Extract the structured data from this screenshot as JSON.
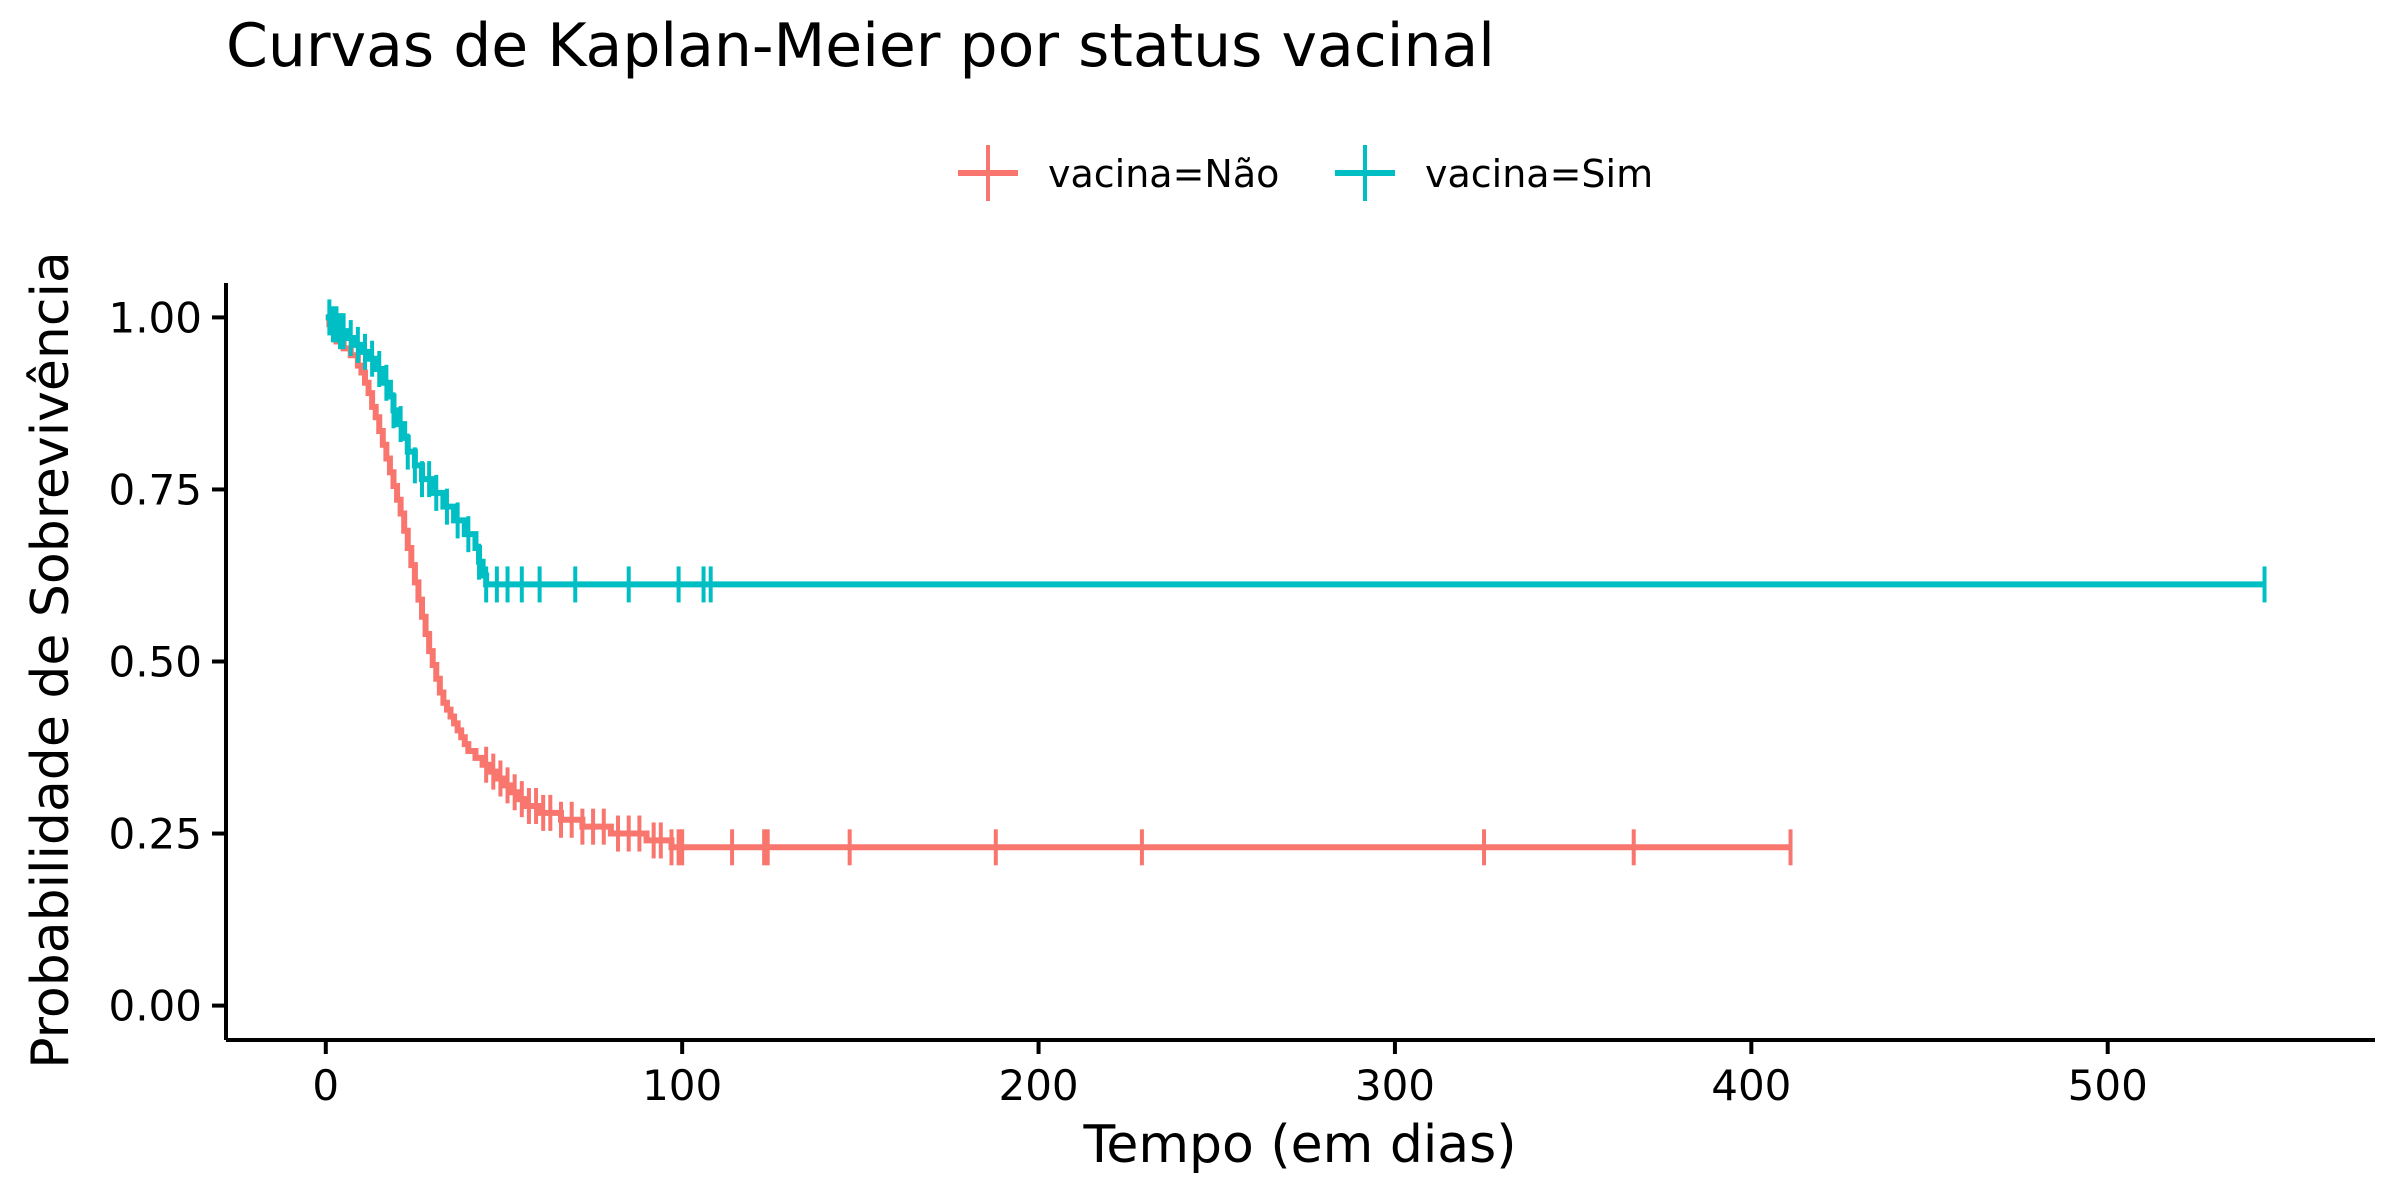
{
  "chart_data": {
    "type": "line",
    "title": "Curvas de Kaplan-Meier por status vacinal",
    "xlabel": "Tempo (em dias)",
    "ylabel": "Probabilidade de Sobrevivência",
    "xlim": [
      -28,
      575
    ],
    "ylim": [
      -0.05,
      1.05
    ],
    "x_ticks": [
      0,
      100,
      200,
      300,
      400,
      500
    ],
    "x_tick_labels": [
      "0",
      "100",
      "200",
      "300",
      "400",
      "500"
    ],
    "y_ticks": [
      0,
      0.25,
      0.5,
      0.75,
      1.0
    ],
    "y_tick_labels": [
      "0.00",
      "0.25",
      "0.50",
      "0.75",
      "1.00"
    ],
    "grid": false,
    "legend_position": "top",
    "series": [
      {
        "name": "vacina=Não",
        "color": "#F8766D",
        "steps": [
          [
            0,
            1.0
          ],
          [
            1,
            0.99
          ],
          [
            2,
            0.98
          ],
          [
            3,
            0.965
          ],
          [
            5,
            0.955
          ],
          [
            7,
            0.945
          ],
          [
            9,
            0.93
          ],
          [
            10,
            0.92
          ],
          [
            11,
            0.905
          ],
          [
            12,
            0.89
          ],
          [
            13,
            0.87
          ],
          [
            14,
            0.855
          ],
          [
            15,
            0.835
          ],
          [
            16,
            0.815
          ],
          [
            17,
            0.795
          ],
          [
            18,
            0.775
          ],
          [
            19,
            0.755
          ],
          [
            20,
            0.735
          ],
          [
            21,
            0.715
          ],
          [
            22,
            0.69
          ],
          [
            23,
            0.665
          ],
          [
            24,
            0.64
          ],
          [
            25,
            0.615
          ],
          [
            26,
            0.59
          ],
          [
            27,
            0.565
          ],
          [
            28,
            0.54
          ],
          [
            29,
            0.515
          ],
          [
            30,
            0.495
          ],
          [
            31,
            0.475
          ],
          [
            32,
            0.455
          ],
          [
            33,
            0.44
          ],
          [
            34,
            0.43
          ],
          [
            35,
            0.42
          ],
          [
            36,
            0.41
          ],
          [
            37,
            0.4
          ],
          [
            38,
            0.39
          ],
          [
            39,
            0.38
          ],
          [
            40,
            0.37
          ],
          [
            42,
            0.36
          ],
          [
            44,
            0.35
          ],
          [
            46,
            0.34
          ],
          [
            48,
            0.33
          ],
          [
            50,
            0.32
          ],
          [
            52,
            0.31
          ],
          [
            54,
            0.3
          ],
          [
            56,
            0.29
          ],
          [
            60,
            0.28
          ],
          [
            66,
            0.27
          ],
          [
            72,
            0.26
          ],
          [
            80,
            0.25
          ],
          [
            90,
            0.24
          ],
          [
            97,
            0.23
          ]
        ],
        "end_x": 411,
        "censor_times": [
          45,
          47,
          49,
          51,
          53,
          55,
          57,
          59,
          61,
          63,
          66,
          69,
          72,
          75,
          78,
          82,
          85,
          88,
          92,
          94,
          97,
          99,
          100,
          114,
          123,
          124,
          147,
          188,
          229,
          325,
          367,
          411
        ]
      },
      {
        "name": "vacina=Sim",
        "color": "#00BFC4",
        "steps": [
          [
            0,
            1.0
          ],
          [
            2,
            0.99
          ],
          [
            4,
            0.98
          ],
          [
            6,
            0.97
          ],
          [
            8,
            0.96
          ],
          [
            10,
            0.95
          ],
          [
            12,
            0.94
          ],
          [
            14,
            0.925
          ],
          [
            16,
            0.905
          ],
          [
            18,
            0.885
          ],
          [
            19,
            0.865
          ],
          [
            20,
            0.845
          ],
          [
            22,
            0.825
          ],
          [
            23,
            0.805
          ],
          [
            25,
            0.785
          ],
          [
            27,
            0.765
          ],
          [
            30,
            0.745
          ],
          [
            33,
            0.725
          ],
          [
            36,
            0.705
          ],
          [
            39,
            0.685
          ],
          [
            42,
            0.665
          ],
          [
            43,
            0.645
          ],
          [
            44,
            0.625
          ],
          [
            45,
            0.612
          ]
        ],
        "end_x": 544,
        "censor_times": [
          1,
          2,
          3,
          4,
          5,
          7,
          9,
          11,
          13,
          15,
          17,
          19,
          21,
          23,
          25,
          27,
          29,
          31,
          34,
          37,
          40,
          43,
          45,
          48,
          51,
          55,
          60,
          70,
          85,
          99,
          106,
          108,
          544
        ]
      }
    ]
  }
}
